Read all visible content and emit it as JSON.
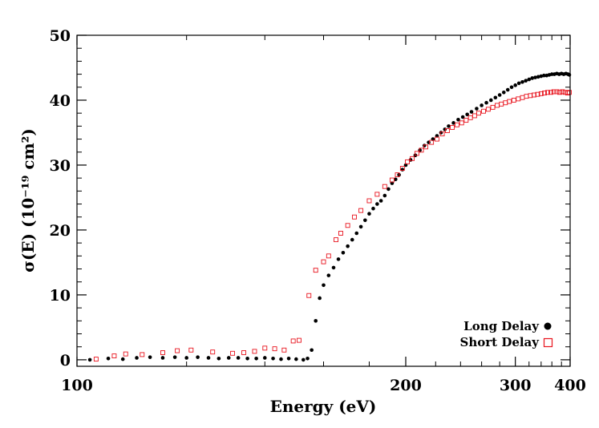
{
  "chart_data": {
    "type": "scatter",
    "title": "",
    "xlabel": "Energy (eV)",
    "ylabel": "σ(E) (10⁻¹⁹ cm²)",
    "xscale": "reciprocal",
    "xlim": [
      100,
      400
    ],
    "ylim": [
      -1,
      50
    ],
    "x_ticks": [
      100,
      200,
      300,
      400
    ],
    "x_tick_labels": [
      "100",
      "200",
      "300",
      "400"
    ],
    "y_ticks": [
      0,
      10,
      20,
      30,
      40,
      50
    ],
    "y_tick_labels": [
      "0",
      "10",
      "20",
      "30",
      "40",
      "50"
    ],
    "grid": false,
    "legend_position": "bottom-right",
    "series": [
      {
        "name": "Long Delay",
        "marker": "filled-circle",
        "color": "#000000",
        "points": [
          [
            102.0,
            0.0
          ],
          [
            105.0,
            0.2
          ],
          [
            107.5,
            0.1
          ],
          [
            110.0,
            0.3
          ],
          [
            112.5,
            0.4
          ],
          [
            115.0,
            0.3
          ],
          [
            117.5,
            0.4
          ],
          [
            120.0,
            0.3
          ],
          [
            122.5,
            0.4
          ],
          [
            125.0,
            0.3
          ],
          [
            127.5,
            0.2
          ],
          [
            130.0,
            0.3
          ],
          [
            132.5,
            0.3
          ],
          [
            135.0,
            0.2
          ],
          [
            137.5,
            0.2
          ],
          [
            140.0,
            0.3
          ],
          [
            142.5,
            0.2
          ],
          [
            145.0,
            0.1
          ],
          [
            147.5,
            0.2
          ],
          [
            150.0,
            0.1
          ],
          [
            152.5,
            0.0
          ],
          [
            154.0,
            0.2
          ],
          [
            155.5,
            1.5
          ],
          [
            157.0,
            6.0
          ],
          [
            158.5,
            9.5
          ],
          [
            160.0,
            11.5
          ],
          [
            162.0,
            13.0
          ],
          [
            164.0,
            14.2
          ],
          [
            166.0,
            15.5
          ],
          [
            168.0,
            16.5
          ],
          [
            170.0,
            17.5
          ],
          [
            172.0,
            18.5
          ],
          [
            174.0,
            19.5
          ],
          [
            176.0,
            20.5
          ],
          [
            178.0,
            21.5
          ],
          [
            180.0,
            22.5
          ],
          [
            182.0,
            23.3
          ],
          [
            184.0,
            24.0
          ],
          [
            186.0,
            24.5
          ],
          [
            188.0,
            25.3
          ],
          [
            190.0,
            26.3
          ],
          [
            192.0,
            27.2
          ],
          [
            194.0,
            27.8
          ],
          [
            196.0,
            28.5
          ],
          [
            198.0,
            29.3
          ],
          [
            200.0,
            30.0
          ],
          [
            203.0,
            30.8
          ],
          [
            206.0,
            31.5
          ],
          [
            209.0,
            32.3
          ],
          [
            212.0,
            33.0
          ],
          [
            215.0,
            33.5
          ],
          [
            218.0,
            34.0
          ],
          [
            221.0,
            34.5
          ],
          [
            224.0,
            35.0
          ],
          [
            227.0,
            35.5
          ],
          [
            230.0,
            36.0
          ],
          [
            234.0,
            36.5
          ],
          [
            238.0,
            37.0
          ],
          [
            242.0,
            37.4
          ],
          [
            246.0,
            37.8
          ],
          [
            250.0,
            38.2
          ],
          [
            255.0,
            38.7
          ],
          [
            260.0,
            39.2
          ],
          [
            265.0,
            39.6
          ],
          [
            270.0,
            40.0
          ],
          [
            275.0,
            40.4
          ],
          [
            280.0,
            40.8
          ],
          [
            285.0,
            41.2
          ],
          [
            290.0,
            41.6
          ],
          [
            295.0,
            42.0
          ],
          [
            300.0,
            42.3
          ],
          [
            305.0,
            42.6
          ],
          [
            310.0,
            42.8
          ],
          [
            315.0,
            43.0
          ],
          [
            320.0,
            43.2
          ],
          [
            325.0,
            43.4
          ],
          [
            330.0,
            43.5
          ],
          [
            335.0,
            43.6
          ],
          [
            340.0,
            43.7
          ],
          [
            345.0,
            43.8
          ],
          [
            350.0,
            43.8
          ],
          [
            355.0,
            43.9
          ],
          [
            360.0,
            44.0
          ],
          [
            365.0,
            44.0
          ],
          [
            370.0,
            44.1
          ],
          [
            375.0,
            44.0
          ],
          [
            380.0,
            44.1
          ],
          [
            385.0,
            44.0
          ],
          [
            390.0,
            44.1
          ],
          [
            395.0,
            44.0
          ],
          [
            398.0,
            43.9
          ]
        ]
      },
      {
        "name": "Short Delay",
        "marker": "open-square",
        "color": "#e8141e",
        "points": [
          [
            103.0,
            0.1
          ],
          [
            106.0,
            0.6
          ],
          [
            108.0,
            0.9
          ],
          [
            111.0,
            0.8
          ],
          [
            115.0,
            1.1
          ],
          [
            118.0,
            1.4
          ],
          [
            121.0,
            1.5
          ],
          [
            126.0,
            1.2
          ],
          [
            131.0,
            1.0
          ],
          [
            134.0,
            1.1
          ],
          [
            137.0,
            1.3
          ],
          [
            140.0,
            1.8
          ],
          [
            143.0,
            1.7
          ],
          [
            146.0,
            1.5
          ],
          [
            149.0,
            2.9
          ],
          [
            151.0,
            3.0
          ],
          [
            154.5,
            9.9
          ],
          [
            157.0,
            13.8
          ],
          [
            160.0,
            15.1
          ],
          [
            162.0,
            16.0
          ],
          [
            165.0,
            18.5
          ],
          [
            167.0,
            19.5
          ],
          [
            170.0,
            20.7
          ],
          [
            173.0,
            22.0
          ],
          [
            176.0,
            23.0
          ],
          [
            180.0,
            24.5
          ],
          [
            184.0,
            25.5
          ],
          [
            188.0,
            26.7
          ],
          [
            192.0,
            27.7
          ],
          [
            195.0,
            28.5
          ],
          [
            198.0,
            29.5
          ],
          [
            201.0,
            30.5
          ],
          [
            204.0,
            31.0
          ],
          [
            207.0,
            31.8
          ],
          [
            210.0,
            32.3
          ],
          [
            213.0,
            32.8
          ],
          [
            217.0,
            33.5
          ],
          [
            221.0,
            34.0
          ],
          [
            225.0,
            34.8
          ],
          [
            229.0,
            35.3
          ],
          [
            233.0,
            35.8
          ],
          [
            237.0,
            36.2
          ],
          [
            241.0,
            36.5
          ],
          [
            245.0,
            36.9
          ],
          [
            249.0,
            37.3
          ],
          [
            253.0,
            37.6
          ],
          [
            257.0,
            38.0
          ],
          [
            262.0,
            38.3
          ],
          [
            267.0,
            38.6
          ],
          [
            272.0,
            38.9
          ],
          [
            277.0,
            39.2
          ],
          [
            282.0,
            39.4
          ],
          [
            287.0,
            39.6
          ],
          [
            292.0,
            39.8
          ],
          [
            298.0,
            40.0
          ],
          [
            304.0,
            40.2
          ],
          [
            310.0,
            40.4
          ],
          [
            316.0,
            40.6
          ],
          [
            322.0,
            40.7
          ],
          [
            328.0,
            40.8
          ],
          [
            334.0,
            40.9
          ],
          [
            340.0,
            41.0
          ],
          [
            346.0,
            41.1
          ],
          [
            352.0,
            41.2
          ],
          [
            358.0,
            41.2
          ],
          [
            364.0,
            41.3
          ],
          [
            370.0,
            41.3
          ],
          [
            376.0,
            41.2
          ],
          [
            382.0,
            41.3
          ],
          [
            388.0,
            41.2
          ],
          [
            394.0,
            41.1
          ],
          [
            398.0,
            41.2
          ]
        ]
      }
    ]
  }
}
